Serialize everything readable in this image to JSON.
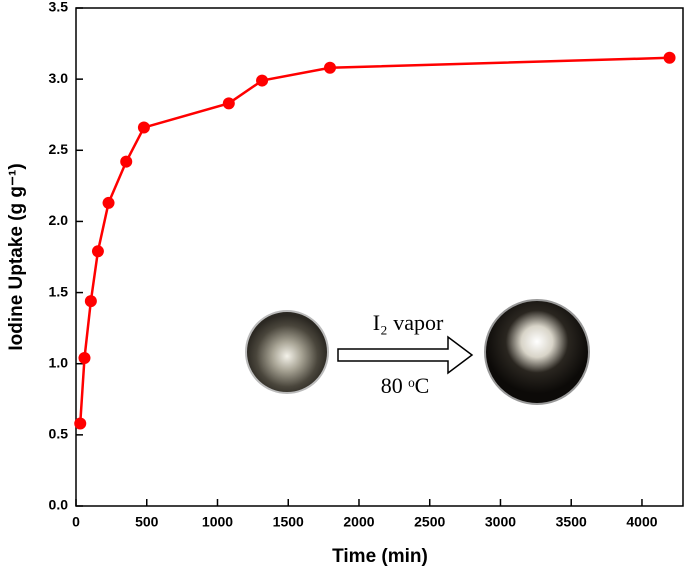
{
  "chart_data": {
    "type": "line",
    "x_label": "Time (min)",
    "y_label": "Iodine Uptake (g g⁻¹)",
    "annotations": [
      "I₂ vapor",
      "80 ᵒC"
    ],
    "x": [
      30,
      60,
      105,
      155,
      230,
      355,
      480,
      1080,
      1315,
      1795,
      4195
    ],
    "series": [
      {
        "color": "#ff0000",
        "values": [
          0.58,
          1.04,
          1.44,
          1.79,
          2.13,
          2.42,
          2.66,
          2.83,
          2.99,
          3.08,
          3.15
        ]
      }
    ],
    "xlim": [
      0,
      4290
    ],
    "ylim": [
      0,
      3.5
    ],
    "xticks": [
      0,
      500,
      1000,
      1500,
      2000,
      2500,
      3000,
      3500,
      4000
    ],
    "yticks": [
      {
        "value": 0,
        "label": "0.0"
      },
      0.5,
      {
        "value": 1,
        "label": "1.0"
      },
      1.5,
      {
        "value": 2,
        "label": "2.0"
      },
      2.5,
      {
        "value": 3,
        "label": "3.0"
      },
      3.5
    ],
    "grid": false
  }
}
